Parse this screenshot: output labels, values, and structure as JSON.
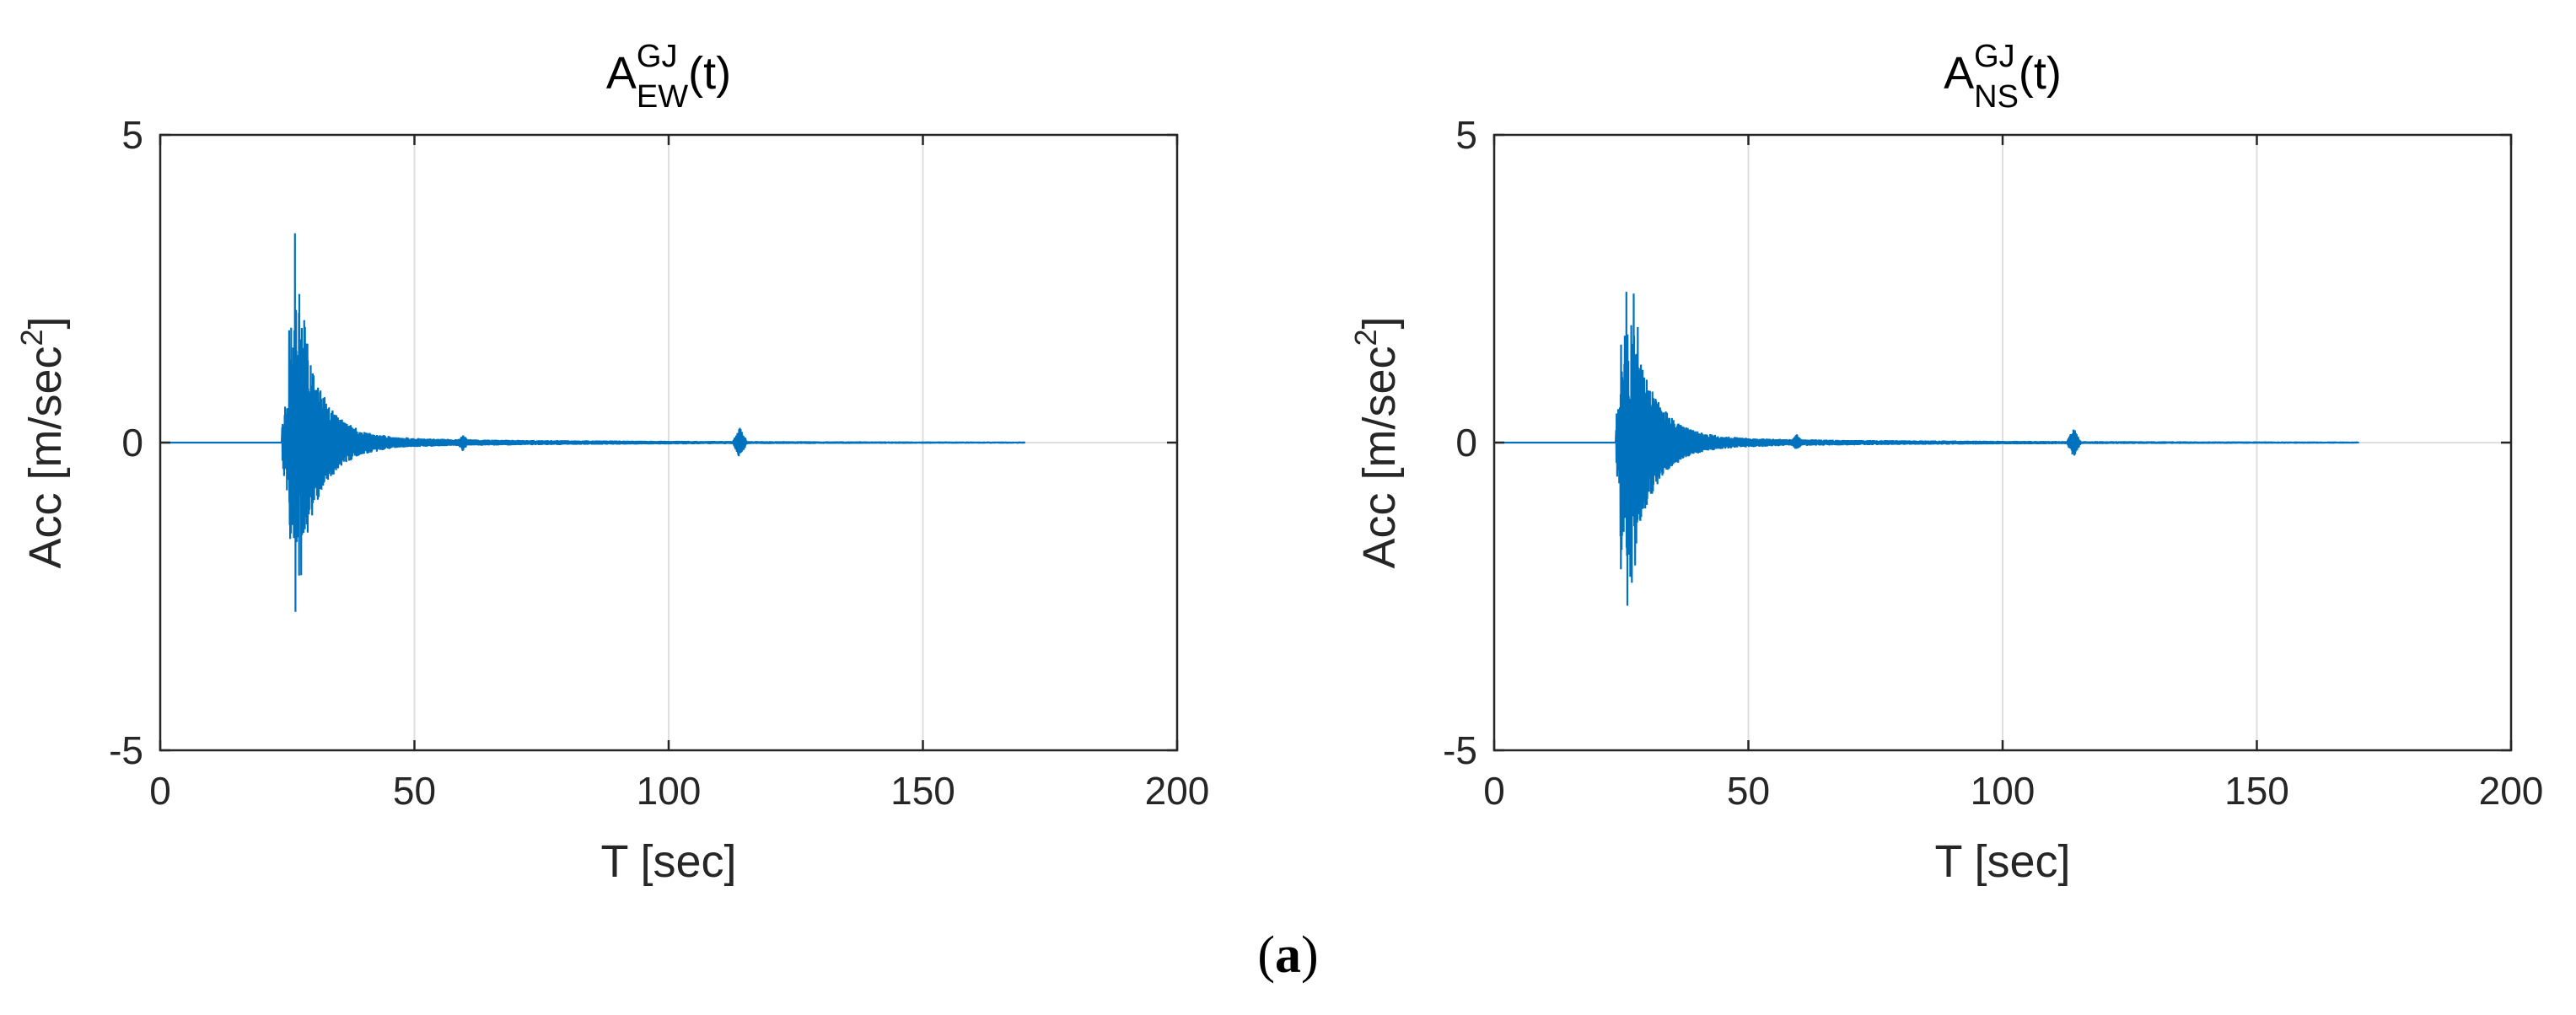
{
  "caption": {
    "open": "(",
    "label": "a",
    "close": ")"
  },
  "chart_data": [
    {
      "type": "line",
      "title": {
        "base": "A",
        "sup": "GJ",
        "sub": "EW",
        "suffix": "(t)"
      },
      "xlabel": "T [sec]",
      "ylabel": {
        "base": "Acc [m/sec",
        "sup": "2",
        "suffix": "]"
      },
      "xlim": [
        0,
        200
      ],
      "ylim": [
        -5,
        5
      ],
      "xticks": [
        0,
        50,
        100,
        150,
        200
      ],
      "yticks": [
        -5,
        0,
        5
      ],
      "grid": true,
      "color": "#0072BD",
      "record_end": 170,
      "series": [
        {
          "values_description": "seismic accelerogram",
          "peaks": [
            {
              "x": 26.5,
              "y": 3.4
            },
            {
              "x": 26.6,
              "y": -2.75
            },
            {
              "x": 114.0,
              "y": 0.25
            },
            {
              "x": 114.0,
              "y": -0.2
            }
          ]
        }
      ]
    },
    {
      "type": "line",
      "title": {
        "base": "A",
        "sup": "GJ",
        "sub": "NS",
        "suffix": "(t)"
      },
      "xlabel": "T [sec]",
      "ylabel": {
        "base": "Acc [m/sec",
        "sup": "2",
        "suffix": "]"
      },
      "xlim": [
        0,
        200
      ],
      "ylim": [
        -5,
        5
      ],
      "xticks": [
        0,
        50,
        100,
        150,
        200
      ],
      "yticks": [
        -5,
        0,
        5
      ],
      "grid": true,
      "color": "#0072BD",
      "record_end": 170,
      "series": [
        {
          "values_description": "seismic accelerogram",
          "peaks": [
            {
              "x": 26.0,
              "y": 2.45
            },
            {
              "x": 26.2,
              "y": -2.65
            },
            {
              "x": 114.0,
              "y": 0.22
            },
            {
              "x": 114.0,
              "y": -0.18
            }
          ]
        }
      ]
    }
  ]
}
